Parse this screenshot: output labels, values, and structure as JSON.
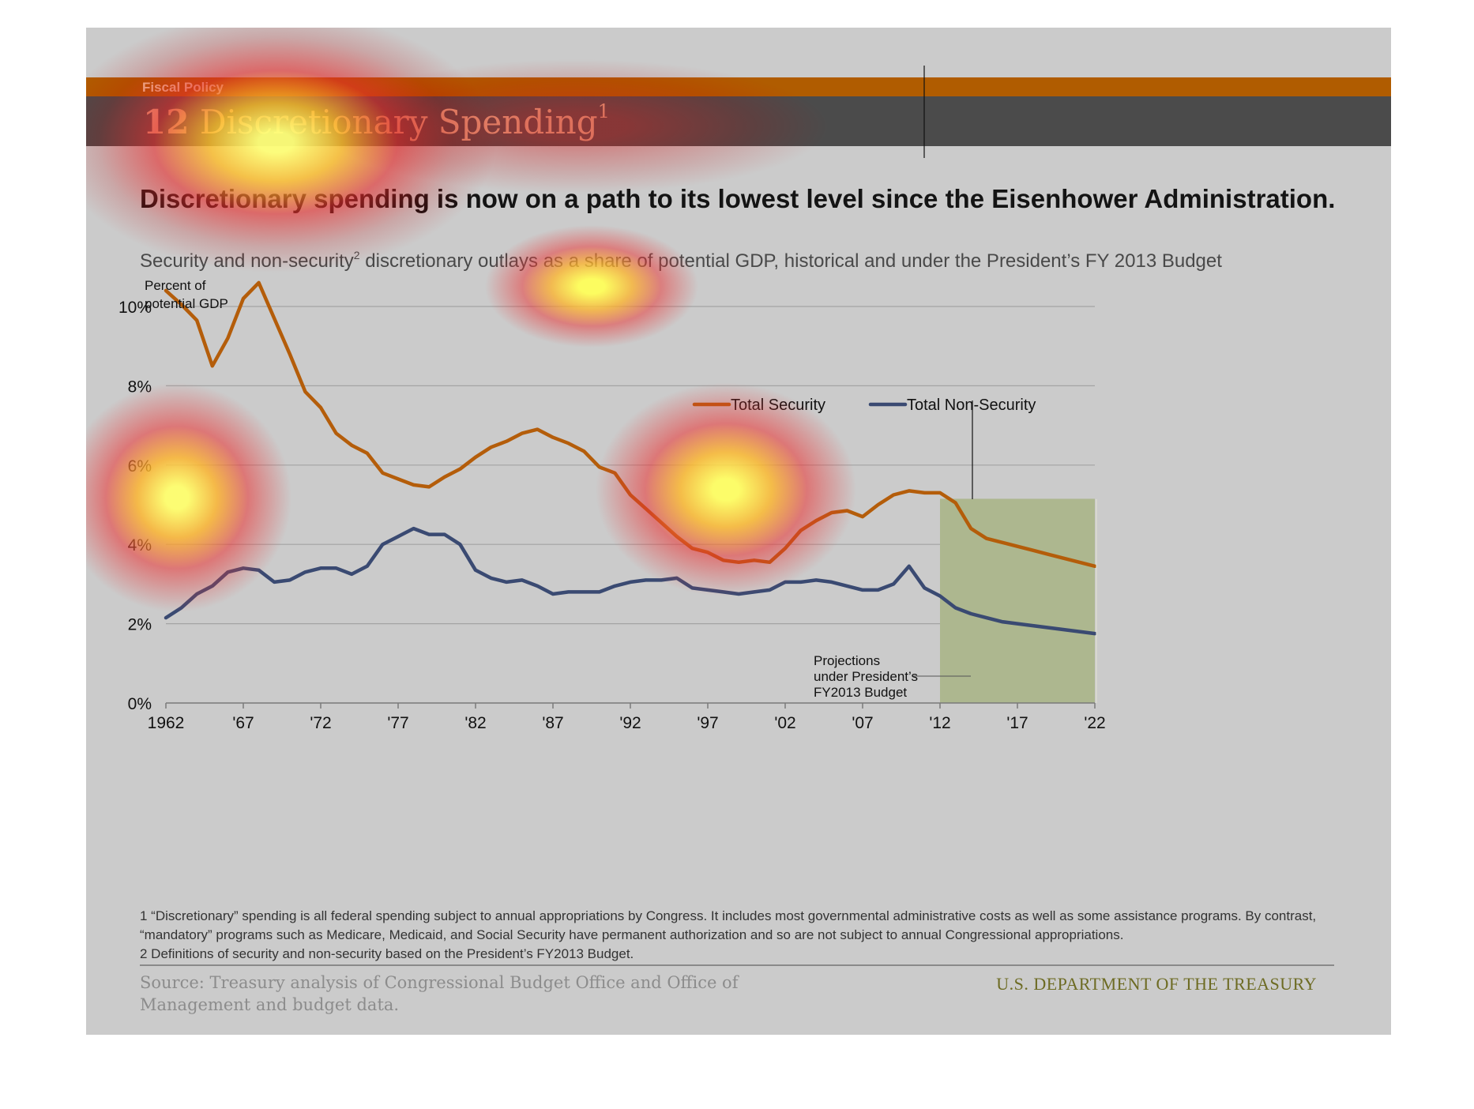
{
  "header": {
    "section_label": "Fiscal Policy",
    "slide_number": "12",
    "slide_title": "Discretionary Spending",
    "title_footnote_mark": "1"
  },
  "headline": "Discretionary spending is now on a path to its lowest level since the Eisenhower Administration.",
  "subtitle": {
    "part1": "Security and non-security",
    "footnote_mark": "2",
    "part2": " discretionary outlays as a share of potential GDP, historical and under the President’s FY 2013 Budget"
  },
  "chart_data": {
    "type": "line",
    "ylabel": "Percent of potential GDP",
    "ylabel_lines": [
      "Percent of",
      "potential GDP"
    ],
    "ylim": [
      0,
      10.5
    ],
    "xlim": [
      1962,
      2022
    ],
    "yticks": [
      0,
      2,
      4,
      6,
      8,
      10
    ],
    "ytick_labels": [
      "0%",
      "2%",
      "4%",
      "6%",
      "8%",
      "10%"
    ],
    "xticks": [
      1962,
      1967,
      1972,
      1977,
      1982,
      1987,
      1992,
      1997,
      2002,
      2007,
      2012,
      2017,
      2022
    ],
    "xtick_labels": [
      "1962",
      "'67",
      "'72",
      "'77",
      "'82",
      "'87",
      "'92",
      "'97",
      "'02",
      "'07",
      "'12",
      "'17",
      "'22"
    ],
    "grid": "horizontal",
    "legend_placement": "top-right",
    "x": [
      1962,
      1963,
      1964,
      1965,
      1966,
      1967,
      1968,
      1969,
      1970,
      1971,
      1972,
      1973,
      1974,
      1975,
      1976,
      1977,
      1978,
      1979,
      1980,
      1981,
      1982,
      1983,
      1984,
      1985,
      1986,
      1987,
      1988,
      1989,
      1990,
      1991,
      1992,
      1993,
      1994,
      1995,
      1996,
      1997,
      1998,
      1999,
      2000,
      2001,
      2002,
      2003,
      2004,
      2005,
      2006,
      2007,
      2008,
      2009,
      2010,
      2011,
      2012,
      2013,
      2014,
      2015,
      2016,
      2017,
      2018,
      2019,
      2020,
      2021,
      2022
    ],
    "series": [
      {
        "name": "Total Security",
        "color": "#b45d0a",
        "values": [
          10.4,
          10.05,
          9.65,
          8.5,
          9.2,
          10.2,
          10.6,
          9.7,
          8.8,
          7.85,
          7.45,
          6.8,
          6.5,
          6.3,
          5.8,
          5.65,
          5.5,
          5.45,
          5.7,
          5.9,
          6.2,
          6.45,
          6.6,
          6.8,
          6.9,
          6.7,
          6.55,
          6.35,
          5.95,
          5.8,
          5.25,
          4.9,
          4.55,
          4.2,
          3.9,
          3.8,
          3.6,
          3.55,
          3.6,
          3.55,
          3.9,
          4.35,
          4.6,
          4.8,
          4.85,
          4.7,
          5.0,
          5.25,
          5.35,
          5.3,
          5.3,
          5.05,
          4.4,
          4.15,
          4.05,
          3.95,
          3.85,
          3.75,
          3.65,
          3.55,
          3.45
        ]
      },
      {
        "name": "Total Non-Security",
        "color": "#3a4a72",
        "values": [
          2.15,
          2.4,
          2.75,
          2.95,
          3.3,
          3.4,
          3.35,
          3.05,
          3.1,
          3.3,
          3.4,
          3.4,
          3.25,
          3.45,
          4.0,
          4.2,
          4.4,
          4.25,
          4.25,
          4.0,
          3.35,
          3.15,
          3.05,
          3.1,
          2.95,
          2.75,
          2.8,
          2.8,
          2.8,
          2.95,
          3.05,
          3.1,
          3.1,
          3.15,
          2.9,
          2.85,
          2.8,
          2.75,
          2.8,
          2.85,
          3.05,
          3.05,
          3.1,
          3.05,
          2.95,
          2.85,
          2.85,
          3.0,
          3.45,
          2.9,
          2.7,
          2.4,
          2.25,
          2.15,
          2.05,
          2.0,
          1.95,
          1.9,
          1.85,
          1.8,
          1.75
        ]
      }
    ],
    "shaded_region": {
      "x_start": 2012,
      "x_end": 2022,
      "color": "#adb78f"
    },
    "annotation_lines": [
      "Projections",
      "under President’s",
      "FY2013 Budget"
    ]
  },
  "footnotes": {
    "note1": "1 “Discretionary” spending is all federal spending subject to annual appropriations by Congress. It includes most governmental administrative costs as well as some assistance programs. By contrast, “mandatory” programs such as Medicare, Medicaid, and Social Security have permanent authorization and so are not subject to annual Congressional appropriations.",
    "note2": "2 Definitions of security and non-security based on the President’s FY2013 Budget."
  },
  "source": "Source: Treasury analysis of Congressional Budget Office and Office of Management and budget data.",
  "agency": "U.S. DEPARTMENT OF THE TREASURY"
}
